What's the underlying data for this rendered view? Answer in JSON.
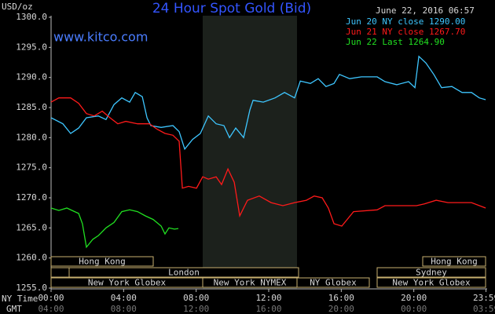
{
  "chart_data": {
    "type": "line",
    "title": "24 Hour Spot Gold (Bid)",
    "y_label": "USD/oz",
    "timestamp": "June 22, 2016 06:57",
    "watermark": "www.kitco.com",
    "x_label": "NY Time",
    "x2_label": "GMT",
    "xlim": [
      0,
      24
    ],
    "ylim": [
      1255,
      1300
    ],
    "xticks": [
      {
        "value": 0,
        "label": "00:00"
      },
      {
        "value": 4,
        "label": "04:00"
      },
      {
        "value": 8,
        "label": "08:00"
      },
      {
        "value": 12,
        "label": "12:00"
      },
      {
        "value": 16,
        "label": "16:00"
      },
      {
        "value": 20,
        "label": "20:00"
      },
      {
        "value": 23.98,
        "label": "23:59"
      }
    ],
    "gmt_labels": [
      "04:00",
      "08:00",
      "12:00",
      "16:00",
      "20:00",
      "00:00",
      "03:59"
    ],
    "yticks": [
      {
        "value": 1255,
        "label": "1255.0"
      },
      {
        "value": 1260,
        "label": "1260.0"
      },
      {
        "value": 1265,
        "label": "1265.0"
      },
      {
        "value": 1270,
        "label": "1270.0"
      },
      {
        "value": 1275,
        "label": "1275.0"
      },
      {
        "value": 1280,
        "label": "1280.0"
      },
      {
        "value": 1285,
        "label": "1285.0"
      },
      {
        "value": 1290,
        "label": "1290.0"
      },
      {
        "value": 1295,
        "label": "1295.0"
      },
      {
        "value": 1300,
        "label": "1300.0"
      }
    ],
    "sessions": [
      "Hong Kong",
      "London",
      "New York Globex",
      "New York NYMEX",
      "NY Globex",
      "Sydney",
      "Hong Kong",
      "New York Globex"
    ],
    "series": [
      {
        "name": "Jun 20 NY close 1290.00",
        "color": "#3ec6ff",
        "x": [
          0,
          0.65,
          1.08,
          1.52,
          1.95,
          2.6,
          3.03,
          3.47,
          3.9,
          4.33,
          4.64,
          5.03,
          5.29,
          5.5,
          6.07,
          6.72,
          7.06,
          7.37,
          7.8,
          8.23,
          8.67,
          9.1,
          9.53,
          9.84,
          10.18,
          10.62,
          10.96,
          11.14,
          11.7,
          12.35,
          12.87,
          13.43,
          13.74,
          14.3,
          14.73,
          15.16,
          15.6,
          15.9,
          16.46,
          17.11,
          17.98,
          18.41,
          19.06,
          19.71,
          20.06,
          20.28,
          20.67,
          21.1,
          21.53,
          22.1,
          22.66,
          23.18,
          23.61,
          23.96
        ],
        "values": [
          1283.3,
          1282.3,
          1280.7,
          1281.6,
          1283.3,
          1283.6,
          1283.0,
          1285.5,
          1286.6,
          1285.9,
          1287.5,
          1286.8,
          1283.3,
          1282.0,
          1281.7,
          1282.0,
          1281.0,
          1278.1,
          1279.7,
          1280.7,
          1283.6,
          1282.3,
          1282.0,
          1280.0,
          1281.6,
          1280.0,
          1284.6,
          1286.2,
          1285.9,
          1286.6,
          1287.5,
          1286.6,
          1289.4,
          1289.0,
          1289.8,
          1288.5,
          1289.0,
          1290.5,
          1289.8,
          1290.1,
          1290.1,
          1289.3,
          1288.8,
          1289.3,
          1288.3,
          1293.5,
          1292.4,
          1290.5,
          1288.3,
          1288.5,
          1287.5,
          1287.5,
          1286.6,
          1286.3
        ]
      },
      {
        "name": "Jun 21 NY close 1267.70",
        "color": "#ff1a1a",
        "x": [
          0,
          0.43,
          1.08,
          1.52,
          1.95,
          2.38,
          2.82,
          3.25,
          3.68,
          4.12,
          4.77,
          5.42,
          5.85,
          6.28,
          6.72,
          7.06,
          7.24,
          7.58,
          8.02,
          8.36,
          8.67,
          9.1,
          9.4,
          9.75,
          10.1,
          10.4,
          10.83,
          11.48,
          12.13,
          12.78,
          13.43,
          14.08,
          14.51,
          14.95,
          15.29,
          15.6,
          16.03,
          16.68,
          17.98,
          18.41,
          19.06,
          19.71,
          20.15,
          20.58,
          21.23,
          21.88,
          22.53,
          23.18,
          23.96
        ],
        "values": [
          1285.9,
          1286.6,
          1286.6,
          1285.7,
          1284.0,
          1283.6,
          1284.4,
          1283.3,
          1282.3,
          1282.7,
          1282.3,
          1282.3,
          1281.4,
          1280.7,
          1280.4,
          1279.4,
          1271.6,
          1271.9,
          1271.6,
          1273.5,
          1273.1,
          1273.5,
          1272.2,
          1274.8,
          1272.6,
          1267.0,
          1269.6,
          1270.3,
          1269.2,
          1268.7,
          1269.2,
          1269.6,
          1270.3,
          1270.0,
          1268.3,
          1265.7,
          1265.3,
          1267.7,
          1268.0,
          1268.7,
          1268.7,
          1268.7,
          1268.7,
          1269.0,
          1269.6,
          1269.2,
          1269.2,
          1269.2,
          1268.3
        ]
      },
      {
        "name": "Jun 22 Last 1264.90",
        "color": "#21e021",
        "x": [
          0,
          0.43,
          0.87,
          1.3,
          1.52,
          1.73,
          1.95,
          2.3,
          2.6,
          3.03,
          3.47,
          3.9,
          4.33,
          4.77,
          5.2,
          5.63,
          6.07,
          6.28,
          6.5,
          6.8,
          7.02
        ],
        "values": [
          1268.3,
          1267.9,
          1268.3,
          1267.7,
          1267.4,
          1265.7,
          1261.8,
          1263.1,
          1263.7,
          1265.0,
          1265.9,
          1267.7,
          1268.0,
          1267.7,
          1267.0,
          1266.4,
          1265.3,
          1264.0,
          1265.0,
          1264.8,
          1264.9
        ]
      }
    ]
  }
}
